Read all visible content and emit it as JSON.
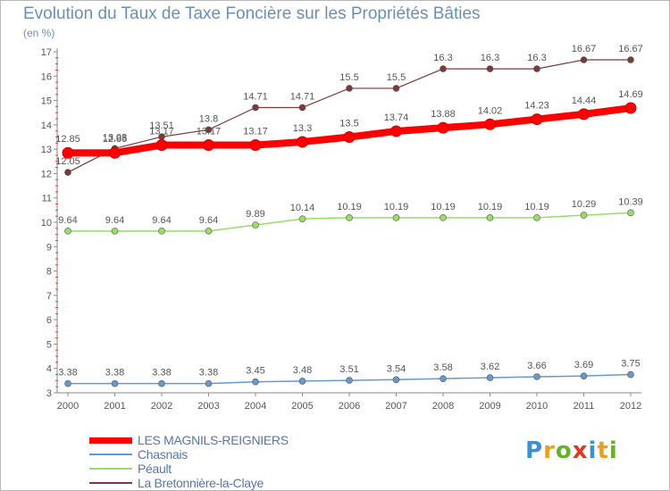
{
  "title": "Evolution du Taux de Taxe Foncière sur les Propriétés Bâties",
  "unit": "(en %)",
  "logo": {
    "letters": [
      "P",
      "r",
      "o",
      "x",
      "i",
      "t",
      "i"
    ],
    "colors": [
      "#3d8fd6",
      "#e8a11c",
      "#66b032",
      "#d93b25",
      "#3d8fd6",
      "#e8a11c",
      "#66b032"
    ]
  },
  "chart_data": {
    "type": "line",
    "title": "Evolution du Taux de Taxe Foncière sur les Propriétés Bâties",
    "ylabel": "(en %)",
    "xlabel": "",
    "x": [
      "2000",
      "2001",
      "2002",
      "2003",
      "2004",
      "2005",
      "2006",
      "2007",
      "2008",
      "2009",
      "2010",
      "2011",
      "2012"
    ],
    "ylim": [
      3,
      17
    ],
    "yticks": [
      "3",
      "4",
      "5",
      "6",
      "7",
      "8",
      "9",
      "10",
      "11",
      "12",
      "13",
      "14",
      "15",
      "16",
      "17"
    ],
    "grid": false,
    "legend_position": "bottom-left",
    "series": [
      {
        "name": "LES MAGNILS-REIGNIERS",
        "color": "#ff0000",
        "width": 8,
        "values": [
          12.85,
          12.85,
          13.17,
          13.17,
          13.17,
          13.3,
          13.5,
          13.74,
          13.88,
          14.02,
          14.23,
          14.44,
          14.69
        ],
        "labels": [
          "12.85",
          "12.85",
          "13.17",
          "13.17",
          "13.17",
          "13.3",
          "13.5",
          "13.74",
          "13.88",
          "14.02",
          "14.23",
          "14.44",
          "14.69"
        ]
      },
      {
        "name": "Chasnais",
        "color": "#6699cc",
        "width": 1.5,
        "values": [
          3.38,
          3.38,
          3.38,
          3.38,
          3.45,
          3.48,
          3.51,
          3.54,
          3.58,
          3.62,
          3.66,
          3.69,
          3.75
        ],
        "labels": [
          "3.38",
          "3.38",
          "3.38",
          "3.38",
          "3.45",
          "3.48",
          "3.51",
          "3.54",
          "3.58",
          "3.62",
          "3.66",
          "3.69",
          "3.75"
        ]
      },
      {
        "name": "Péault",
        "color": "#99dd66",
        "width": 1.5,
        "values": [
          9.64,
          9.64,
          9.64,
          9.64,
          9.89,
          10.14,
          10.19,
          10.19,
          10.19,
          10.19,
          10.19,
          10.29,
          10.39
        ],
        "labels": [
          "9.64",
          "9.64",
          "9.64",
          "9.64",
          "9.89",
          "10.14",
          "10.19",
          "10.19",
          "10.19",
          "10.19",
          "10.19",
          "10.29",
          "10.39"
        ]
      },
      {
        "name": "La Bretonnière-la-Claye",
        "color": "#7a3a3a",
        "width": 1.2,
        "values": [
          12.05,
          13.03,
          13.51,
          13.8,
          14.71,
          14.71,
          15.5,
          15.5,
          16.3,
          16.3,
          16.3,
          16.67,
          16.67
        ],
        "labels": [
          "12.05",
          "13.03",
          "13.51",
          "13.8",
          "14.71",
          "14.71",
          "15.5",
          "15.5",
          "16.3",
          "16.3",
          "16.3",
          "16.67",
          "16.67"
        ]
      }
    ]
  }
}
